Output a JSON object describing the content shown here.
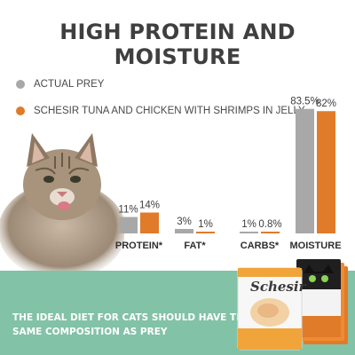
{
  "headline": "HIGH PROTEIN AND MOISTURE",
  "legend": [
    {
      "label": "ACTUAL PREY",
      "color": "#a8a8a8"
    },
    {
      "label": "SCHESIR TUNA AND CHICKEN WITH SHRIMPS IN JELLY",
      "color": "#e07b2a"
    }
  ],
  "chart_data": {
    "type": "bar",
    "categories": [
      "PROTEIN*",
      "FAT*",
      "CARBS*",
      "MOISTURE"
    ],
    "series": [
      {
        "name": "ACTUAL PREY",
        "values": [
          11,
          3,
          1,
          83.5
        ],
        "labels": [
          "11%",
          "3%",
          "1%",
          "83.5%"
        ],
        "color": "#a8a8a8"
      },
      {
        "name": "SCHESIR TUNA AND CHICKEN WITH SHRIMPS IN JELLY",
        "values": [
          14,
          1,
          0.8,
          82
        ],
        "labels": [
          "14%",
          "1%",
          "0.8%",
          "82%"
        ],
        "color": "#e07b2a"
      }
    ],
    "title": "HIGH PROTEIN AND MOISTURE",
    "ylim": [
      0,
      100
    ],
    "grid": false
  },
  "bottom_message": "THE IDEAL DIET FOR CATS SHOULD HAVE THE SAME COMPOSITION AS PREY",
  "product": {
    "brand": "Schesir"
  },
  "colors": {
    "band": "#82c2a6",
    "accent": "#e07b2a",
    "gray": "#a8a8a8"
  }
}
